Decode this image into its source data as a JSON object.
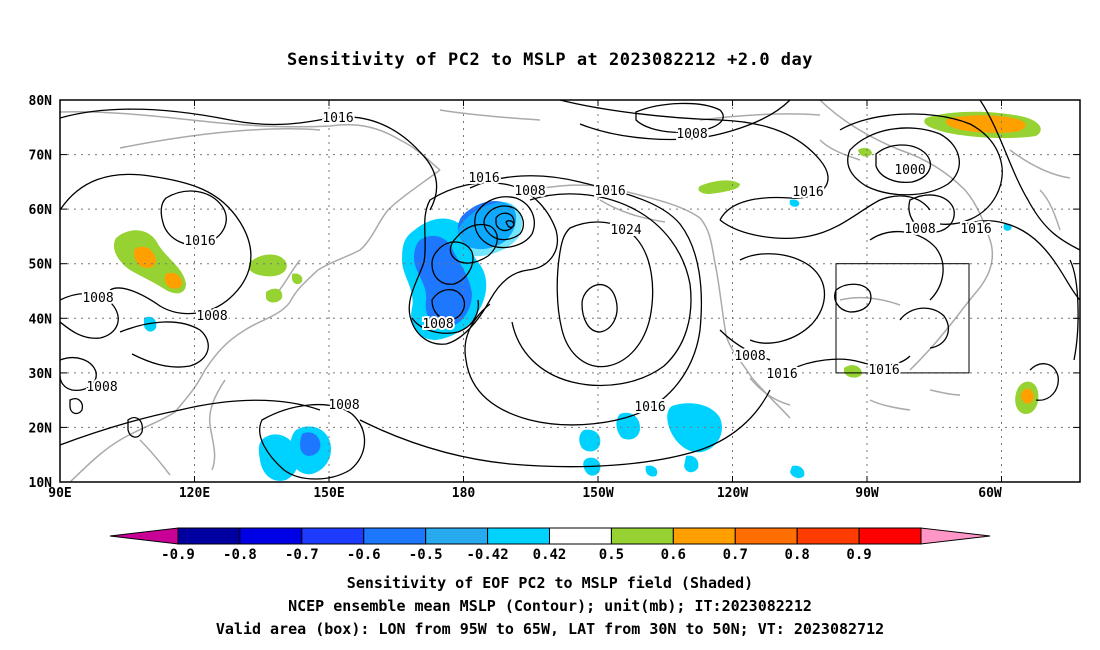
{
  "title": "Sensitivity of PC2 to MSLP at 2023082212 +2.0 day",
  "map": {
    "lat_ticks": [
      "80N",
      "70N",
      "60N",
      "50N",
      "40N",
      "30N",
      "20N",
      "10N"
    ],
    "lon_ticks": [
      "90E",
      "120E",
      "150E",
      "180",
      "150W",
      "120W",
      "90W",
      "60W"
    ],
    "contour_labels": [
      "1016",
      "1008",
      "1016",
      "1008",
      "1016",
      "1016",
      "1000",
      "1016",
      "1016",
      "1024",
      "1008",
      "1008",
      "1008",
      "1008",
      "1008",
      "1008",
      "1016",
      "1016",
      "1016"
    ],
    "valid_box": {
      "lon_range": [
        "95W",
        "65W"
      ],
      "lat_range": [
        "30N",
        "50N"
      ]
    }
  },
  "colorbar": {
    "labels": [
      "-0.9",
      "-0.8",
      "-0.7",
      "-0.6",
      "-0.5",
      "-0.42",
      "0.42",
      "0.5",
      "0.6",
      "0.7",
      "0.8",
      "0.9"
    ],
    "colors": [
      "#0000a0",
      "#0000e6",
      "#1e3cff",
      "#1e78ff",
      "#28aaf0",
      "#00d2ff",
      "#ffffff",
      "#96d232",
      "#ffa000",
      "#ff6e00",
      "#ff3c00",
      "#ff0000"
    ],
    "end_colors": {
      "low": "#c80096",
      "high": "#ff96c8"
    }
  },
  "captions": [
    "Sensitivity of EOF PC2 to MSLP field (Shaded)",
    "NCEP ensemble mean MSLP (Contour); unit(mb); IT:2023082212",
    "Valid area (box): LON from 95W to 65W, LAT from 30N to 50N; VT: 2023082712"
  ]
}
